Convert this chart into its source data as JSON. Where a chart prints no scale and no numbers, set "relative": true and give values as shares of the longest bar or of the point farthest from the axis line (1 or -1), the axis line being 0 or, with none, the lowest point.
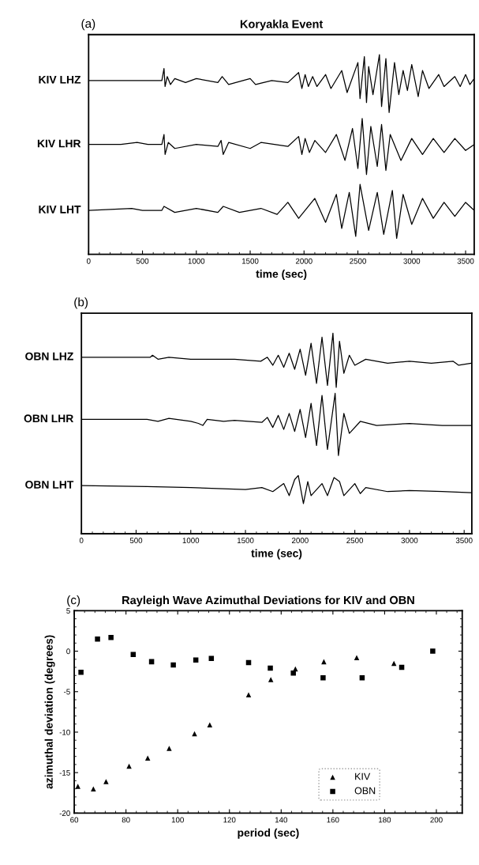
{
  "chart_data": [
    {
      "type": "line",
      "title": "Koryakla Event",
      "annotations": [
        "(a)"
      ],
      "xlabel": "time (sec)",
      "relative": true,
      "xlim": [
        0,
        3580
      ],
      "xticks": [
        0,
        500,
        1000,
        1500,
        2000,
        2500,
        3000,
        3500
      ],
      "tick_labels": "x",
      "grid": false,
      "legend": false,
      "marker": "none",
      "line_style": "solid",
      "series": [
        {
          "name": "KIV LHZ",
          "color": "#000000",
          "x": [
            0,
            680,
            700,
            710,
            730,
            760,
            800,
            900,
            1000,
            1200,
            1240,
            1300,
            1500,
            1550,
            1700,
            1850,
            1950,
            1980,
            2010,
            2040,
            2080,
            2120,
            2200,
            2250,
            2350,
            2400,
            2500,
            2520,
            2560,
            2580,
            2600,
            2640,
            2700,
            2720,
            2760,
            2790,
            2840,
            2880,
            2920,
            2960,
            3000,
            3060,
            3100,
            3160,
            3250,
            3300,
            3400,
            3450,
            3500,
            3540,
            3580
          ],
          "values": [
            0.87,
            0.87,
            0.93,
            0.84,
            0.89,
            0.85,
            0.88,
            0.86,
            0.88,
            0.86,
            0.89,
            0.85,
            0.88,
            0.85,
            0.87,
            0.86,
            0.91,
            0.83,
            0.9,
            0.84,
            0.89,
            0.84,
            0.9,
            0.83,
            0.92,
            0.81,
            0.96,
            0.78,
            0.99,
            0.76,
            0.94,
            0.8,
            1.0,
            0.74,
            0.98,
            0.71,
            0.96,
            0.8,
            0.92,
            0.82,
            0.95,
            0.79,
            0.92,
            0.83,
            0.9,
            0.84,
            0.89,
            0.84,
            0.9,
            0.85,
            0.88
          ]
        },
        {
          "name": "KIV LHR",
          "color": "#000000",
          "x": [
            0,
            300,
            450,
            550,
            680,
            700,
            710,
            740,
            800,
            1000,
            1200,
            1230,
            1250,
            1300,
            1500,
            1600,
            1850,
            1950,
            1980,
            2010,
            2050,
            2100,
            2200,
            2300,
            2380,
            2450,
            2500,
            2540,
            2580,
            2620,
            2680,
            2720,
            2760,
            2800,
            2900,
            3000,
            3100,
            3200,
            3300,
            3400,
            3500,
            3580
          ],
          "values": [
            0.55,
            0.55,
            0.56,
            0.55,
            0.55,
            0.6,
            0.5,
            0.56,
            0.53,
            0.55,
            0.54,
            0.57,
            0.5,
            0.56,
            0.53,
            0.56,
            0.54,
            0.59,
            0.5,
            0.58,
            0.51,
            0.57,
            0.51,
            0.6,
            0.47,
            0.63,
            0.43,
            0.68,
            0.4,
            0.64,
            0.44,
            0.65,
            0.42,
            0.6,
            0.47,
            0.58,
            0.5,
            0.58,
            0.51,
            0.58,
            0.52,
            0.55
          ]
        },
        {
          "name": "KIV LHT",
          "color": "#000000",
          "x": [
            0,
            400,
            500,
            680,
            700,
            800,
            1000,
            1200,
            1250,
            1400,
            1600,
            1750,
            1850,
            1950,
            2100,
            2200,
            2300,
            2350,
            2420,
            2480,
            2520,
            2600,
            2680,
            2740,
            2820,
            2860,
            2920,
            3000,
            3100,
            3200,
            3300,
            3400,
            3500,
            3580
          ],
          "values": [
            0.22,
            0.23,
            0.22,
            0.22,
            0.24,
            0.21,
            0.23,
            0.21,
            0.24,
            0.21,
            0.23,
            0.2,
            0.26,
            0.18,
            0.28,
            0.16,
            0.3,
            0.13,
            0.31,
            0.09,
            0.35,
            0.12,
            0.31,
            0.1,
            0.32,
            0.08,
            0.3,
            0.15,
            0.28,
            0.18,
            0.26,
            0.19,
            0.26,
            0.22
          ]
        }
      ]
    },
    {
      "type": "line",
      "annotations": [
        "(b)"
      ],
      "xlabel": "time (sec)",
      "relative": true,
      "xlim": [
        0,
        3570
      ],
      "xticks": [
        0,
        500,
        1000,
        1500,
        2000,
        2500,
        3000,
        3500
      ],
      "tick_labels": "x",
      "grid": false,
      "legend": false,
      "marker": "none",
      "line_style": "solid",
      "series": [
        {
          "name": "OBN LHZ",
          "color": "#000000",
          "x": [
            0,
            630,
            650,
            700,
            800,
            1000,
            1400,
            1640,
            1700,
            1750,
            1800,
            1850,
            1900,
            1950,
            2000,
            2050,
            2100,
            2150,
            2200,
            2250,
            2300,
            2330,
            2360,
            2400,
            2450,
            2500,
            2600,
            2800,
            3000,
            3200,
            3400,
            3450,
            3560
          ],
          "values": [
            0.88,
            0.88,
            0.89,
            0.87,
            0.88,
            0.87,
            0.87,
            0.86,
            0.88,
            0.84,
            0.89,
            0.83,
            0.9,
            0.82,
            0.92,
            0.79,
            0.95,
            0.75,
            0.98,
            0.74,
            1.0,
            0.73,
            0.96,
            0.8,
            0.89,
            0.84,
            0.87,
            0.85,
            0.86,
            0.85,
            0.86,
            0.84,
            0.85
          ]
        },
        {
          "name": "OBN LHR",
          "color": "#000000",
          "x": [
            0,
            600,
            700,
            800,
            1000,
            1070,
            1110,
            1150,
            1300,
            1400,
            1650,
            1700,
            1750,
            1800,
            1850,
            1900,
            1950,
            2000,
            2050,
            2100,
            2150,
            2200,
            2250,
            2320,
            2350,
            2400,
            2450,
            2550,
            2700,
            3000,
            3300,
            3560
          ],
          "values": [
            0.57,
            0.57,
            0.56,
            0.575,
            0.56,
            0.55,
            0.54,
            0.57,
            0.56,
            0.565,
            0.555,
            0.58,
            0.53,
            0.59,
            0.52,
            0.6,
            0.51,
            0.62,
            0.48,
            0.65,
            0.44,
            0.69,
            0.42,
            0.7,
            0.39,
            0.6,
            0.5,
            0.56,
            0.54,
            0.55,
            0.54,
            0.54
          ]
        },
        {
          "name": "OBN LHT",
          "color": "#000000",
          "x": [
            0,
            600,
            1000,
            1500,
            1650,
            1750,
            1850,
            1900,
            1950,
            1983,
            2030,
            2070,
            2100,
            2200,
            2250,
            2310,
            2360,
            2400,
            2500,
            2550,
            2600,
            2800,
            3000,
            3300,
            3560
          ],
          "values": [
            0.24,
            0.235,
            0.23,
            0.22,
            0.23,
            0.21,
            0.25,
            0.19,
            0.27,
            0.29,
            0.15,
            0.26,
            0.19,
            0.25,
            0.19,
            0.28,
            0.26,
            0.19,
            0.25,
            0.2,
            0.23,
            0.21,
            0.215,
            0.21,
            0.205
          ]
        }
      ]
    },
    {
      "type": "scatter",
      "title": "Rayleigh Wave Azimuthal Deviations for KIV and OBN",
      "annotations": [
        "(c)"
      ],
      "xlabel": "period (sec)",
      "ylabel": "azimuthal deviation (degrees)",
      "xlim": [
        60,
        210
      ],
      "xticks": [
        60,
        80,
        100,
        120,
        140,
        160,
        180,
        200
      ],
      "ylim": [
        -20,
        5
      ],
      "yticks": [
        5,
        0,
        -5,
        -10,
        -15,
        -20
      ],
      "grid": false,
      "legend": "bottom right",
      "series": [
        {
          "name": "KIV",
          "color": "#000000",
          "marker": "triangle",
          "x": [
            61.4,
            67.4,
            72.3,
            81.2,
            88.4,
            96.7,
            106.5,
            112.4,
            127.4,
            136.0,
            145.5,
            156.5,
            169.2,
            183.6
          ],
          "values": [
            -16.7,
            -17.0,
            -16.1,
            -14.2,
            -13.2,
            -12.0,
            -10.2,
            -9.1,
            -5.4,
            -3.5,
            -2.2,
            -1.3,
            -0.8,
            -1.5
          ]
        },
        {
          "name": "OBN",
          "color": "#000000",
          "marker": "square",
          "x": [
            62.6,
            69.0,
            74.2,
            82.8,
            89.9,
            98.3,
            107.0,
            113.0,
            127.4,
            135.8,
            144.7,
            156.2,
            171.3,
            186.6,
            198.6
          ],
          "values": [
            -2.6,
            1.5,
            1.7,
            -0.4,
            -1.3,
            -1.7,
            -1.1,
            -0.9,
            -1.4,
            -2.1,
            -2.7,
            -3.3,
            -3.3,
            -2.0,
            0.0
          ]
        }
      ]
    }
  ]
}
